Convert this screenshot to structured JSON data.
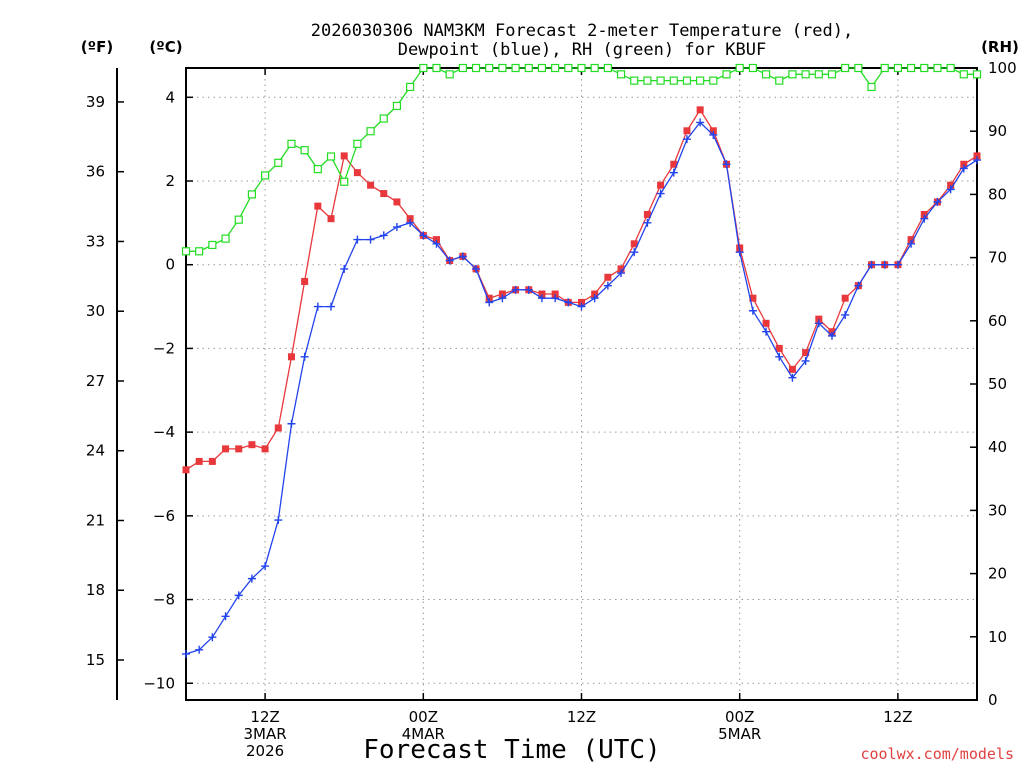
{
  "chart_data": {
    "type": "line",
    "title_line1": "2026030306 NAM3KM Forecast 2-meter Temperature (red),",
    "title_line2": "Dewpoint (blue), RH (green) for KBUF",
    "xlabel": "Forecast Time (UTC)",
    "credit": "coolwx.com/models",
    "units": {
      "f": "(ºF)",
      "c": "(ºC)",
      "rh": "(RH)"
    },
    "x_hours_range": [
      0,
      60
    ],
    "c_range": [
      -10.4,
      4.7
    ],
    "rh_range": [
      0,
      100
    ],
    "f_ticks": [
      "15",
      "18",
      "21",
      "24",
      "27",
      "30",
      "33",
      "36",
      "39"
    ],
    "c_ticks": [
      "−10",
      "−8",
      "−6",
      "−4",
      "−2",
      "0",
      "2",
      "4"
    ],
    "rh_ticks": [
      "0",
      "10",
      "20",
      "30",
      "40",
      "50",
      "60",
      "70",
      "80",
      "90",
      "100"
    ],
    "x_ticks": [
      {
        "hour": 6,
        "lines": [
          "12Z",
          "3MAR",
          "2026"
        ]
      },
      {
        "hour": 18,
        "lines": [
          "00Z",
          "4MAR"
        ]
      },
      {
        "hour": 30,
        "lines": [
          "12Z"
        ]
      },
      {
        "hour": 42,
        "lines": [
          "00Z",
          "5MAR"
        ]
      },
      {
        "hour": 54,
        "lines": [
          "12Z"
        ]
      }
    ],
    "series": [
      {
        "name": "Temperature",
        "color": "#e8383c",
        "axis": "c",
        "marker": "square-filled",
        "values": [
          -4.9,
          -4.7,
          -4.7,
          -4.4,
          -4.4,
          -4.3,
          -4.4,
          -3.9,
          -2.2,
          -0.4,
          1.4,
          1.1,
          2.6,
          2.2,
          1.9,
          1.7,
          1.5,
          1.1,
          0.7,
          0.6,
          0.1,
          0.2,
          -0.1,
          -0.8,
          -0.7,
          -0.6,
          -0.6,
          -0.7,
          -0.7,
          -0.9,
          -0.9,
          -0.7,
          -0.3,
          -0.1,
          0.5,
          1.2,
          1.9,
          2.4,
          3.2,
          3.7,
          3.2,
          2.4,
          0.4,
          -0.8,
          -1.4,
          -2.0,
          -2.5,
          -2.1,
          -1.3,
          -1.6,
          -0.8,
          -0.5,
          0.0,
          0.0,
          0.0,
          0.6,
          1.2,
          1.5,
          1.9,
          2.4,
          2.6
        ]
      },
      {
        "name": "Dewpoint",
        "color": "#2244ee",
        "axis": "c",
        "marker": "plus",
        "values": [
          -9.3,
          -9.2,
          -8.9,
          -8.4,
          -7.9,
          -7.5,
          -7.2,
          -6.1,
          -3.8,
          -2.2,
          -1.0,
          -1.0,
          -0.1,
          0.6,
          0.6,
          0.7,
          0.9,
          1.0,
          0.7,
          0.5,
          0.1,
          0.2,
          -0.1,
          -0.9,
          -0.8,
          -0.6,
          -0.6,
          -0.8,
          -0.8,
          -0.9,
          -1.0,
          -0.8,
          -0.5,
          -0.2,
          0.3,
          1.0,
          1.7,
          2.2,
          3.0,
          3.4,
          3.1,
          2.4,
          0.3,
          -1.1,
          -1.6,
          -2.2,
          -2.7,
          -2.3,
          -1.4,
          -1.7,
          -1.2,
          -0.5,
          0.0,
          0.0,
          0.0,
          0.5,
          1.1,
          1.5,
          1.8,
          2.3,
          2.5
        ]
      },
      {
        "name": "RH",
        "color": "#22dd22",
        "axis": "rh",
        "marker": "square-open",
        "values": [
          71,
          71,
          72,
          73,
          76,
          80,
          83,
          85,
          88,
          87,
          84,
          86,
          82,
          88,
          90,
          92,
          94,
          97,
          100,
          100,
          99,
          100,
          100,
          100,
          100,
          100,
          100,
          100,
          100,
          100,
          100,
          100,
          100,
          99,
          98,
          98,
          98,
          98,
          98,
          98,
          98,
          99,
          100,
          100,
          99,
          98,
          99,
          99,
          99,
          99,
          100,
          100,
          97,
          100,
          100,
          100,
          100,
          100,
          100,
          99,
          99
        ]
      }
    ]
  }
}
